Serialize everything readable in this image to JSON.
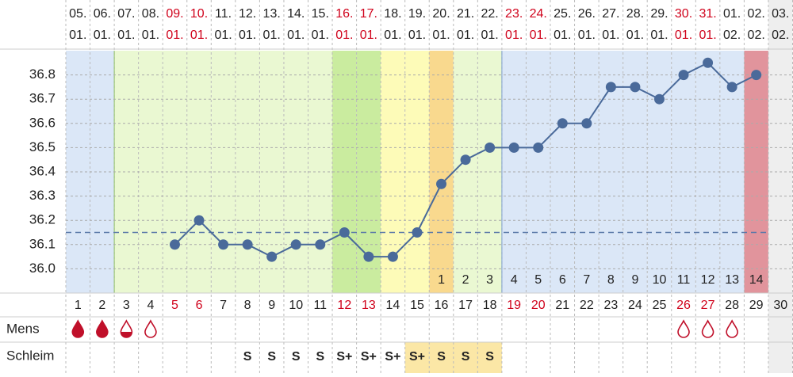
{
  "chart_data": {
    "type": "line",
    "dates": [
      [
        "05.",
        "01."
      ],
      [
        "06.",
        "01."
      ],
      [
        "07.",
        "01."
      ],
      [
        "08.",
        "01."
      ],
      [
        "09.",
        "01."
      ],
      [
        "10.",
        "01."
      ],
      [
        "11.",
        "01."
      ],
      [
        "12.",
        "01."
      ],
      [
        "13.",
        "01."
      ],
      [
        "14.",
        "01."
      ],
      [
        "15.",
        "01."
      ],
      [
        "16.",
        "01."
      ],
      [
        "17.",
        "01."
      ],
      [
        "18.",
        "01."
      ],
      [
        "19.",
        "01."
      ],
      [
        "20.",
        "01."
      ],
      [
        "21.",
        "01."
      ],
      [
        "22.",
        "01."
      ],
      [
        "23.",
        "01."
      ],
      [
        "24.",
        "01."
      ],
      [
        "25.",
        "01."
      ],
      [
        "26.",
        "01."
      ],
      [
        "27.",
        "01."
      ],
      [
        "28.",
        "01."
      ],
      [
        "29.",
        "01."
      ],
      [
        "30.",
        "01."
      ],
      [
        "31.",
        "01."
      ],
      [
        "01.",
        "02."
      ],
      [
        "02.",
        "02."
      ],
      [
        "03.",
        "02."
      ]
    ],
    "x": [
      1,
      2,
      3,
      4,
      5,
      6,
      7,
      8,
      9,
      10,
      11,
      12,
      13,
      14,
      15,
      16,
      17,
      18,
      19,
      20,
      21,
      22,
      23,
      24,
      25,
      26,
      27,
      28,
      29,
      30
    ],
    "values": [
      null,
      null,
      null,
      null,
      36.1,
      36.2,
      36.1,
      36.1,
      36.05,
      36.1,
      36.1,
      36.15,
      36.05,
      36.05,
      36.15,
      36.35,
      36.45,
      36.5,
      36.5,
      36.5,
      36.6,
      36.6,
      36.75,
      36.75,
      36.7,
      36.8,
      36.85,
      36.75,
      36.8,
      null
    ],
    "color": "#4a6a9a",
    "cover_line": 36.15,
    "ylim": [
      35.9,
      36.9
    ],
    "yticks": [
      {
        "value": 36,
        "label": "36.0"
      },
      36.1,
      36.2,
      36.3,
      36.4,
      36.5,
      36.6,
      36.7,
      36.8
    ],
    "grid": true,
    "post_ovulation_days": [
      null,
      null,
      null,
      null,
      null,
      null,
      null,
      null,
      null,
      null,
      null,
      null,
      null,
      null,
      null,
      1,
      2,
      3,
      4,
      5,
      6,
      7,
      8,
      9,
      10,
      11,
      12,
      13,
      14,
      null
    ],
    "mens_label": "Mens",
    "schleim_label": "Schleim",
    "schleim": [
      null,
      null,
      null,
      null,
      null,
      null,
      null,
      "S",
      "S",
      "S",
      "S",
      "S+",
      "S+",
      "S+",
      "S+",
      "S",
      "S",
      "S",
      null,
      null,
      null,
      null,
      null,
      null,
      null,
      null,
      null,
      null,
      null,
      null
    ]
  }
}
